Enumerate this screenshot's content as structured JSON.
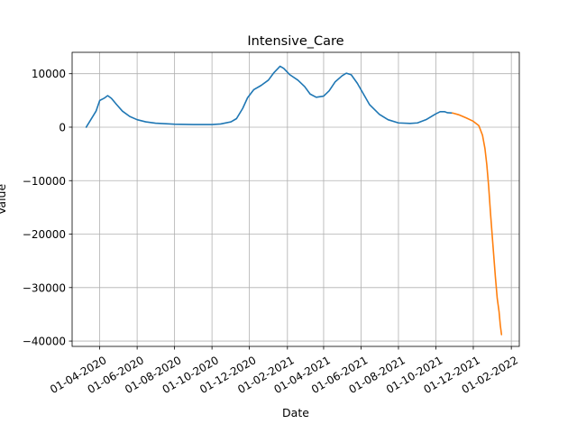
{
  "chart_data": {
    "type": "line",
    "title": "Intensive_Care",
    "xlabel": "Date",
    "ylabel": "Value",
    "grid": true,
    "legend": "none",
    "xlim": [
      "2020-02-16",
      "2022-02-14"
    ],
    "ylim": [
      -41000,
      14000
    ],
    "x_ticks": [
      "2020-04-01",
      "2020-06-01",
      "2020-08-01",
      "2020-10-01",
      "2020-12-01",
      "2021-02-01",
      "2021-04-01",
      "2021-06-01",
      "2021-08-01",
      "2021-10-01",
      "2021-12-01",
      "2022-02-01"
    ],
    "x_tick_labels": [
      "01-04-2020",
      "01-06-2020",
      "01-08-2020",
      "01-10-2020",
      "01-12-2020",
      "01-02-2021",
      "01-04-2021",
      "01-06-2021",
      "01-08-2021",
      "01-10-2021",
      "01-12-2021",
      "01-02-2022"
    ],
    "y_ticks": [
      10000,
      0,
      -10000,
      -20000,
      -30000,
      -40000
    ],
    "y_tick_labels": [
      "10000",
      "0",
      "−10000",
      "−20000",
      "−30000",
      "−40000"
    ],
    "series": [
      {
        "color": "#1f77b4",
        "points": [
          [
            "2020-03-10",
            0
          ],
          [
            "2020-03-18",
            1500
          ],
          [
            "2020-03-26",
            3000
          ],
          [
            "2020-04-01",
            5000
          ],
          [
            "2020-04-08",
            5400
          ],
          [
            "2020-04-14",
            5900
          ],
          [
            "2020-04-20",
            5400
          ],
          [
            "2020-04-28",
            4300
          ],
          [
            "2020-05-08",
            3000
          ],
          [
            "2020-05-20",
            2000
          ],
          [
            "2020-06-01",
            1400
          ],
          [
            "2020-06-15",
            1000
          ],
          [
            "2020-07-01",
            750
          ],
          [
            "2020-08-01",
            550
          ],
          [
            "2020-09-01",
            500
          ],
          [
            "2020-10-01",
            500
          ],
          [
            "2020-10-15",
            600
          ],
          [
            "2020-11-01",
            1000
          ],
          [
            "2020-11-10",
            1600
          ],
          [
            "2020-11-20",
            3500
          ],
          [
            "2020-11-28",
            5500
          ],
          [
            "2020-12-08",
            7000
          ],
          [
            "2020-12-20",
            7800
          ],
          [
            "2021-01-01",
            8800
          ],
          [
            "2021-01-10",
            10200
          ],
          [
            "2021-01-20",
            11400
          ],
          [
            "2021-01-26",
            11000
          ],
          [
            "2021-02-05",
            9800
          ],
          [
            "2021-02-18",
            8800
          ],
          [
            "2021-03-01",
            7600
          ],
          [
            "2021-03-10",
            6200
          ],
          [
            "2021-03-20",
            5600
          ],
          [
            "2021-04-01",
            5800
          ],
          [
            "2021-04-10",
            6800
          ],
          [
            "2021-04-20",
            8500
          ],
          [
            "2021-05-01",
            9600
          ],
          [
            "2021-05-08",
            10100
          ],
          [
            "2021-05-16",
            9800
          ],
          [
            "2021-05-26",
            8200
          ],
          [
            "2021-06-05",
            6200
          ],
          [
            "2021-06-15",
            4200
          ],
          [
            "2021-07-01",
            2400
          ],
          [
            "2021-07-15",
            1400
          ],
          [
            "2021-08-01",
            800
          ],
          [
            "2021-08-20",
            700
          ],
          [
            "2021-09-01",
            800
          ],
          [
            "2021-09-15",
            1400
          ],
          [
            "2021-10-01",
            2500
          ],
          [
            "2021-10-08",
            2900
          ],
          [
            "2021-10-15",
            2900
          ],
          [
            "2021-10-20",
            2700
          ],
          [
            "2021-10-28",
            2650
          ]
        ]
      },
      {
        "color": "#ff7f0e",
        "points": [
          [
            "2021-10-28",
            2650
          ],
          [
            "2021-11-08",
            2300
          ],
          [
            "2021-11-20",
            1700
          ],
          [
            "2021-12-01",
            1100
          ],
          [
            "2021-12-10",
            300
          ],
          [
            "2021-12-16",
            -1500
          ],
          [
            "2021-12-20",
            -4000
          ],
          [
            "2021-12-23",
            -7000
          ],
          [
            "2021-12-26",
            -11000
          ],
          [
            "2021-12-29",
            -16000
          ],
          [
            "2022-01-02",
            -22000
          ],
          [
            "2022-01-06",
            -28000
          ],
          [
            "2022-01-09",
            -32000
          ],
          [
            "2022-01-12",
            -34500
          ],
          [
            "2022-01-14",
            -37000
          ],
          [
            "2022-01-16",
            -38800
          ]
        ]
      }
    ]
  }
}
